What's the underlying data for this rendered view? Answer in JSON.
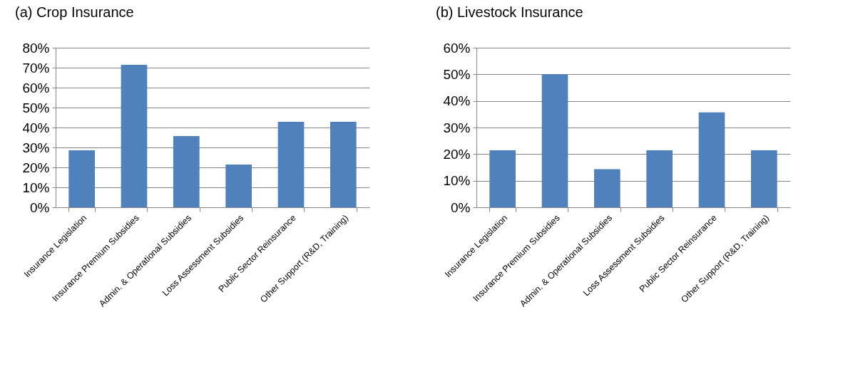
{
  "chart_data": [
    {
      "type": "bar",
      "title": "(a)  Crop Insurance",
      "categories": [
        "Insurance Legislation",
        "Insurance Premium Subsidies",
        "Admin. & Operational Subsidies",
        "Loss Assessment Subsidies",
        "Public Sector Reinsurance",
        "Other Support (R&D, Training)"
      ],
      "values": [
        28.6,
        71.4,
        35.7,
        21.4,
        42.9,
        42.9
      ],
      "color": "#4f81bd",
      "ylim": [
        0,
        80
      ],
      "yticks": [
        {
          "value": 0,
          "label": "0%"
        },
        {
          "value": 10,
          "label": "10%"
        },
        {
          "value": 20,
          "label": "20%"
        },
        {
          "value": 30,
          "label": "30%"
        },
        {
          "value": 40,
          "label": "40%"
        },
        {
          "value": 50,
          "label": "50%"
        },
        {
          "value": 60,
          "label": "60%"
        },
        {
          "value": 70,
          "label": "70%"
        },
        {
          "value": 80,
          "label": "80%"
        }
      ],
      "grid": "y"
    },
    {
      "type": "bar",
      "title": "(b) Livestock Insurance",
      "categories": [
        "Insurance Legislation",
        "Insurance Premium Subsidies",
        "Admin. & Operational Subsidies",
        "Loss Assessment Subsidies",
        "Public Sector Reinsurance",
        "Other Support (R&D, Training)"
      ],
      "values": [
        21.4,
        50,
        14.3,
        21.4,
        35.7,
        21.4
      ],
      "color": "#4f81bd",
      "ylim": [
        0,
        60
      ],
      "yticks": [
        {
          "value": 0,
          "label": "0%"
        },
        {
          "value": 10,
          "label": "10%"
        },
        {
          "value": 20,
          "label": "20%"
        },
        {
          "value": 30,
          "label": "30%"
        },
        {
          "value": 40,
          "label": "40%"
        },
        {
          "value": 50,
          "label": "50%"
        },
        {
          "value": 60,
          "label": "60%"
        }
      ],
      "grid": "y"
    }
  ]
}
